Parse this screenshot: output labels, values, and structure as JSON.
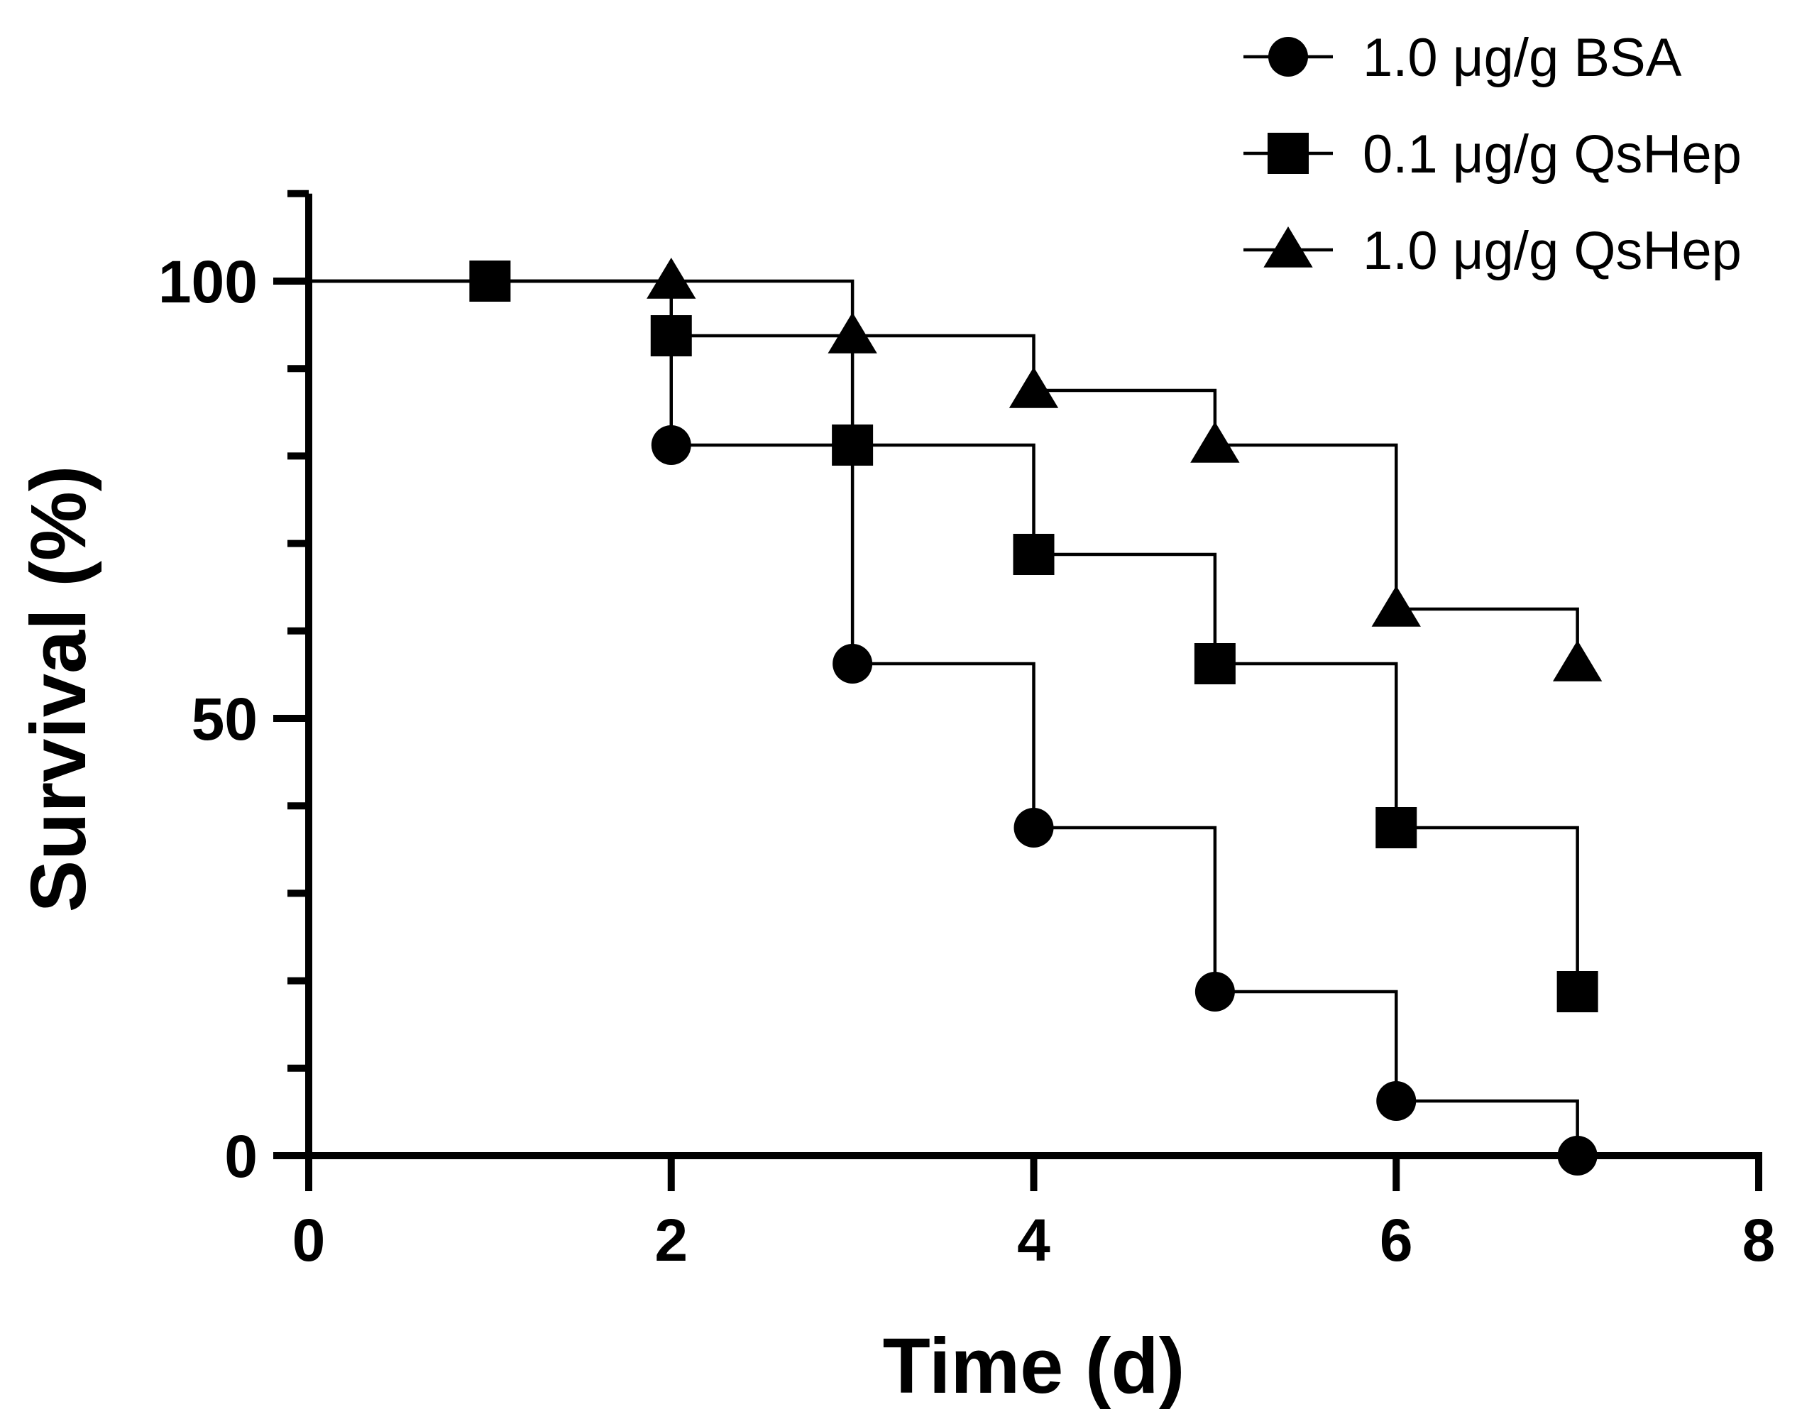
{
  "chart_data": {
    "type": "line",
    "step": true,
    "xlabel": "Time (d)",
    "ylabel": "Survival (%)",
    "xlim": [
      0,
      8
    ],
    "ylim": [
      0,
      110
    ],
    "xticks": [
      0,
      2,
      4,
      6,
      8
    ],
    "yticks": [
      0,
      50,
      100
    ],
    "y_minor_step": 10,
    "legend_position": "top-right",
    "series": [
      {
        "name": "1.0 μg/g BSA",
        "marker": "circle",
        "x": [
          0,
          1,
          2,
          3,
          4,
          5,
          6,
          7
        ],
        "values": [
          100,
          100,
          81.25,
          56.25,
          37.5,
          18.75,
          6.25,
          0
        ],
        "marker_x": [
          1,
          2,
          3,
          4,
          5,
          6,
          7
        ]
      },
      {
        "name": "0.1 μg/g QsHep",
        "marker": "square",
        "x": [
          0,
          1,
          2,
          3,
          4,
          5,
          6,
          7
        ],
        "values": [
          100,
          100,
          93.75,
          81.25,
          68.75,
          56.25,
          37.5,
          18.75
        ],
        "marker_x": [
          1,
          2,
          3,
          4,
          5,
          6,
          7
        ]
      },
      {
        "name": "1.0 μg/g QsHep",
        "marker": "triangle",
        "x": [
          0,
          1,
          2,
          3,
          4,
          5,
          6,
          7
        ],
        "values": [
          100,
          100,
          100,
          93.75,
          87.5,
          81.25,
          62.5,
          56.25
        ],
        "marker_x": [
          2,
          3,
          4,
          5,
          6,
          7
        ]
      }
    ]
  }
}
